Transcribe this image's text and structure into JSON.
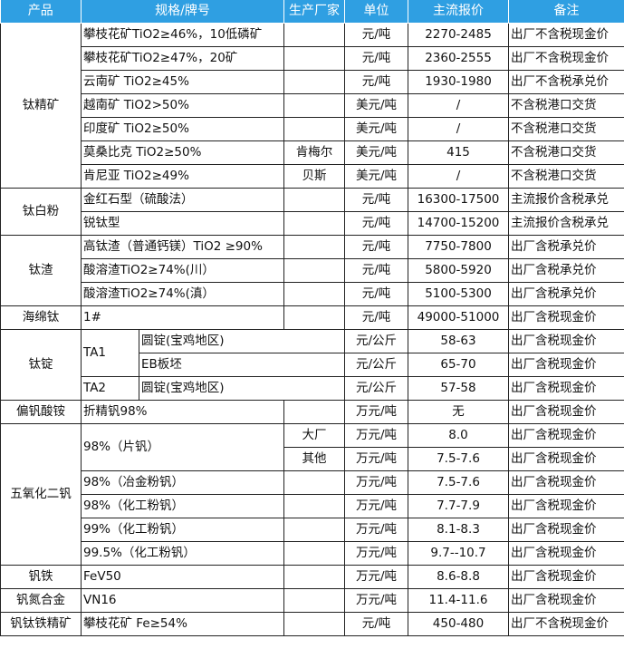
{
  "header": [
    "产品",
    "规格/牌号",
    "生产厂家",
    "单位",
    "主流报价",
    "备注"
  ],
  "colors": {
    "header_bg": "#2f9fe2",
    "header_text": "#ffffff",
    "border": "#222222"
  },
  "groups": [
    {
      "product": "钛精矿",
      "items": [
        {
          "spec": "攀枝花矿TiO2≥46%，10低磷矿",
          "subs": [
            {
              "maker": "",
              "unit": "元/吨",
              "price": "2270-2485",
              "remark": "出厂不含税现金价"
            }
          ]
        },
        {
          "spec": "攀枝花矿TiO2≥47%，20矿",
          "subs": [
            {
              "maker": "",
              "unit": "元/吨",
              "price": "2360-2555",
              "remark": "出厂不含税现金价"
            }
          ]
        },
        {
          "spec": "云南矿 TiO2≥45%",
          "subs": [
            {
              "maker": "",
              "unit": "元/吨",
              "price": "1930-1980",
              "remark": "出厂不含税承兑价"
            }
          ]
        },
        {
          "spec": "越南矿 TiO2>50%",
          "subs": [
            {
              "maker": "",
              "unit": "美元/吨",
              "price": "/",
              "remark": "不含税港口交货"
            }
          ]
        },
        {
          "spec": "印度矿 TiO2≥50%",
          "subs": [
            {
              "maker": "",
              "unit": "美元/吨",
              "price": "/",
              "remark": "不含税港口交货"
            }
          ]
        },
        {
          "spec": "莫桑比克 TiO2≥50%",
          "subs": [
            {
              "maker": "肯梅尔",
              "unit": "美元/吨",
              "price": "415",
              "remark": "不含税港口交货"
            }
          ]
        },
        {
          "spec": "肯尼亚 TiO2≥49%",
          "subs": [
            {
              "maker": "贝斯",
              "unit": "美元/吨",
              "price": "/",
              "remark": "不含税港口交货"
            }
          ]
        }
      ]
    },
    {
      "product": "钛白粉",
      "items": [
        {
          "spec": "金红石型（硫酸法）",
          "subs": [
            {
              "maker": "",
              "unit": "元/吨",
              "price": "16300-17500",
              "remark": "主流报价含税承兑"
            }
          ]
        },
        {
          "spec": "锐钛型",
          "subs": [
            {
              "maker": "",
              "unit": "元/吨",
              "price": "14700-15200",
              "remark": "主流报价含税承兑"
            }
          ]
        }
      ]
    },
    {
      "product": "钛渣",
      "items": [
        {
          "spec": "高钛渣（普通钙镁）TiO2 ≥90%",
          "subs": [
            {
              "maker": "",
              "unit": "元/吨",
              "price": "7750-7800",
              "remark": "出厂含税承兑价"
            }
          ]
        },
        {
          "spec": "酸溶渣TiO2≥74%(川）",
          "subs": [
            {
              "maker": "",
              "unit": "元/吨",
              "price": "5800-5920",
              "remark": "出厂含税承兑价"
            }
          ]
        },
        {
          "spec": "酸溶渣TiO2≥74%(滇）",
          "subs": [
            {
              "maker": "",
              "unit": "元/吨",
              "price": "5100-5300",
              "remark": "出厂含税承兑价"
            }
          ]
        }
      ]
    },
    {
      "product": "海绵钛",
      "items": [
        {
          "spec": "1#",
          "subs": [
            {
              "maker": "",
              "unit": "元/吨",
              "price": "49000-51000",
              "remark": "出厂含税现金价"
            }
          ]
        }
      ]
    },
    {
      "product": "钛锭",
      "items": [
        {
          "spec": "TA1",
          "split": true,
          "subs": [
            {
              "spec2": "圆锭(宝鸡地区)",
              "unit": "元/公斤",
              "price": "58-63",
              "remark": "出厂含税现金价"
            },
            {
              "spec2": "EB板坯",
              "unit": "元/公斤",
              "price": "65-70",
              "remark": "出厂含税现金价"
            }
          ]
        },
        {
          "spec": "TA2",
          "split": true,
          "subs": [
            {
              "spec2": "圆锭(宝鸡地区)",
              "unit": "元/公斤",
              "price": "57-58",
              "remark": "出厂含税现金价"
            }
          ]
        }
      ]
    },
    {
      "product": "偏钒酸铵",
      "items": [
        {
          "spec": "折精钒98%",
          "subs": [
            {
              "maker": "",
              "unit": "万元/吨",
              "price": "无",
              "remark": "出厂含税现金价"
            }
          ]
        }
      ]
    },
    {
      "product": "五氧化二钒",
      "items": [
        {
          "spec": "98%（片钒）",
          "subs": [
            {
              "maker": "大厂",
              "unit": "万元/吨",
              "price": "8.0",
              "remark": "出厂含税现金价"
            },
            {
              "maker": "其他",
              "unit": "万元/吨",
              "price": "7.5-7.6",
              "remark": "出厂含税现金价"
            }
          ]
        },
        {
          "spec": "98%（冶金粉钒）",
          "subs": [
            {
              "maker": "",
              "unit": "万元/吨",
              "price": "7.5-7.6",
              "remark": "出厂含税现金价"
            }
          ]
        },
        {
          "spec": "98%（化工粉钒）",
          "subs": [
            {
              "maker": "",
              "unit": "万元/吨",
              "price": "7.7-7.9",
              "remark": "出厂含税现金价"
            }
          ]
        },
        {
          "spec": "99%（化工粉钒）",
          "subs": [
            {
              "maker": "",
              "unit": "万元/吨",
              "price": "8.1-8.3",
              "remark": "出厂含税现金价"
            }
          ]
        },
        {
          "spec": "99.5%（化工粉钒）",
          "subs": [
            {
              "maker": "",
              "unit": "万元/吨",
              "price": "9.7--10.7",
              "remark": "出厂含税现金价"
            }
          ]
        }
      ]
    },
    {
      "product": "钒铁",
      "items": [
        {
          "spec": "FeV50",
          "subs": [
            {
              "maker": "",
              "unit": "万元/吨",
              "price": "8.6-8.8",
              "remark": "出厂含税现金价"
            }
          ]
        }
      ]
    },
    {
      "product": "钒氮合金",
      "items": [
        {
          "spec": "VN16",
          "subs": [
            {
              "maker": "",
              "unit": "万元/吨",
              "price": "11.4-11.6",
              "remark": "出厂含税现金价"
            }
          ]
        }
      ]
    },
    {
      "product": "钒钛铁精矿",
      "items": [
        {
          "spec": "攀枝花矿 Fe≥54%",
          "subs": [
            {
              "maker": "",
              "unit": "元/吨",
              "price": "450-480",
              "remark": "出厂不含税现金价"
            }
          ]
        }
      ]
    }
  ]
}
